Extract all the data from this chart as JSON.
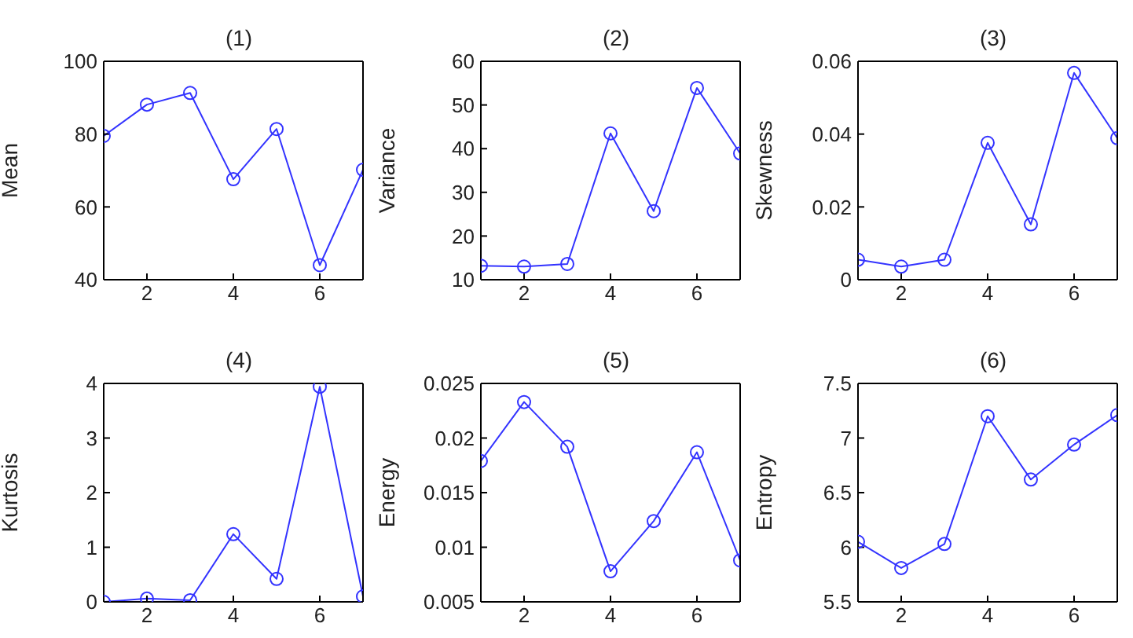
{
  "chart_data": [
    {
      "type": "line",
      "title": "(1)",
      "ylabel": "Mean",
      "x": [
        1,
        2,
        3,
        4,
        5,
        6,
        7
      ],
      "xlim": [
        1,
        7
      ],
      "xticks": [
        2,
        4,
        6
      ],
      "ylim": [
        40,
        100
      ],
      "yticks": [
        40,
        60,
        80,
        100
      ],
      "marker": "circle",
      "line_style": "solid",
      "grid": false,
      "series": [
        {
          "color": "#3333ff",
          "values": [
            79.5,
            88.1,
            91.3,
            67.6,
            81.4,
            44.0,
            70.2
          ]
        }
      ]
    },
    {
      "type": "line",
      "title": "(2)",
      "ylabel": "Variance",
      "x": [
        1,
        2,
        3,
        4,
        5,
        6,
        7
      ],
      "xlim": [
        1,
        7
      ],
      "xticks": [
        2,
        4,
        6
      ],
      "ylim": [
        10,
        60
      ],
      "yticks": [
        10,
        20,
        30,
        40,
        50,
        60
      ],
      "marker": "circle",
      "line_style": "solid",
      "grid": false,
      "series": [
        {
          "color": "#3333ff",
          "values": [
            13.2,
            13.0,
            13.6,
            43.5,
            25.7,
            53.9,
            38.9
          ]
        }
      ]
    },
    {
      "type": "line",
      "title": "(3)",
      "ylabel": "Skewness",
      "x": [
        1,
        2,
        3,
        4,
        5,
        6,
        7
      ],
      "xlim": [
        1,
        7
      ],
      "xticks": [
        2,
        4,
        6
      ],
      "ylim": [
        0,
        0.06
      ],
      "yticks": [
        0,
        0.02,
        0.04,
        0.06
      ],
      "marker": "circle",
      "line_style": "solid",
      "grid": false,
      "series": [
        {
          "color": "#3333ff",
          "values": [
            0.0055,
            0.0036,
            0.0055,
            0.0376,
            0.0152,
            0.0568,
            0.0389
          ]
        }
      ]
    },
    {
      "type": "line",
      "title": "(4)",
      "ylabel": "Kurtosis",
      "x": [
        1,
        2,
        3,
        4,
        5,
        6,
        7
      ],
      "xlim": [
        1,
        7
      ],
      "xticks": [
        2,
        4,
        6
      ],
      "ylim": [
        0,
        4
      ],
      "yticks": [
        0,
        1,
        2,
        3,
        4
      ],
      "marker": "circle",
      "line_style": "solid",
      "grid": false,
      "series": [
        {
          "color": "#3333ff",
          "values": [
            0.0,
            0.06,
            0.03,
            1.24,
            0.42,
            3.94,
            0.1
          ]
        }
      ]
    },
    {
      "type": "line",
      "title": "(5)",
      "ylabel": "Energy",
      "x": [
        1,
        2,
        3,
        4,
        5,
        6,
        7
      ],
      "xlim": [
        1,
        7
      ],
      "xticks": [
        2,
        4,
        6
      ],
      "ylim": [
        0.005,
        0.025
      ],
      "yticks": [
        0.005,
        0.01,
        0.015,
        0.02,
        0.025
      ],
      "marker": "circle",
      "line_style": "solid",
      "grid": false,
      "series": [
        {
          "color": "#3333ff",
          "values": [
            0.0179,
            0.0233,
            0.0192,
            0.0078,
            0.0124,
            0.0187,
            0.0088
          ]
        }
      ]
    },
    {
      "type": "line",
      "title": "(6)",
      "ylabel": "Entropy",
      "x": [
        1,
        2,
        3,
        4,
        5,
        6,
        7
      ],
      "xlim": [
        1,
        7
      ],
      "xticks": [
        2,
        4,
        6
      ],
      "ylim": [
        5.5,
        7.5
      ],
      "yticks": [
        5.5,
        6,
        6.5,
        7,
        7.5
      ],
      "marker": "circle",
      "line_style": "solid",
      "grid": false,
      "series": [
        {
          "color": "#3333ff",
          "values": [
            6.05,
            5.81,
            6.03,
            7.2,
            6.62,
            6.94,
            7.21
          ]
        }
      ]
    }
  ]
}
